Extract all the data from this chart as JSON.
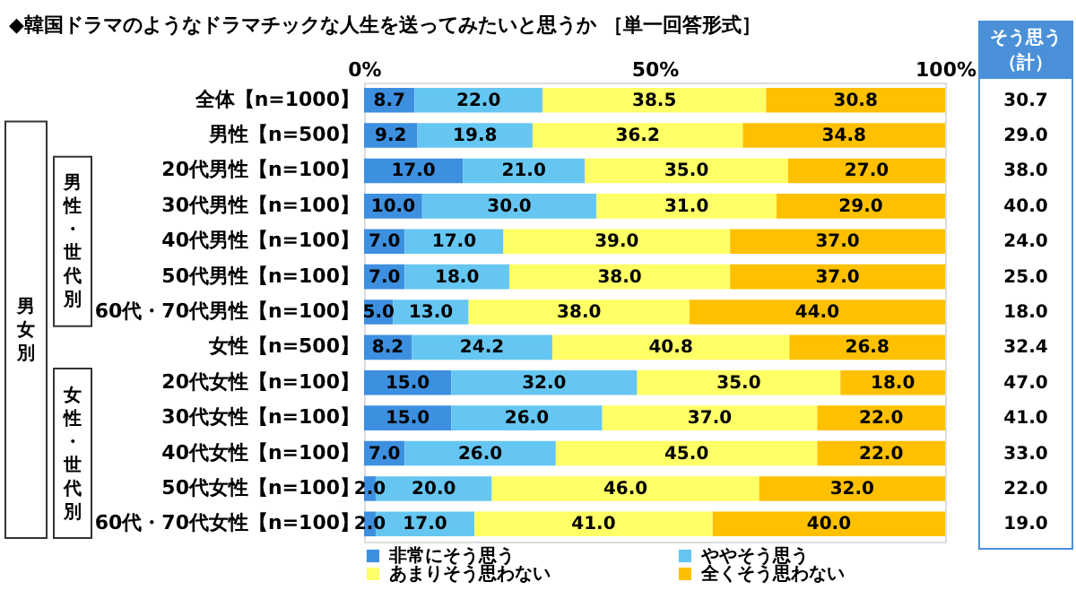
{
  "chart_data": {
    "type": "bar",
    "orientation": "horizontal",
    "stacked": true,
    "title": "◆韓国ドラマのようなドラマチックな人生を送ってみたいと思うか ［単一回答形式］",
    "categories": [
      "全体【n=1000】",
      "男性【n=500】",
      "20代男性【n=100】",
      "30代男性【n=100】",
      "40代男性【n=100】",
      "50代男性【n=100】",
      "60代・70代男性【n=100】",
      "女性【n=500】",
      "20代女性【n=100】",
      "30代女性【n=100】",
      "40代女性【n=100】",
      "50代女性【n=100】",
      "60代・70代女性【n=100】"
    ],
    "series": [
      {
        "name": "非常にそう思う",
        "color": "#3d8fe0",
        "values": [
          8.7,
          9.2,
          17.0,
          10.0,
          7.0,
          7.0,
          5.0,
          8.2,
          15.0,
          15.0,
          7.0,
          2.0,
          2.0
        ],
        "value_labels": [
          "8.7",
          "9.2",
          "17.0",
          "10.0",
          "7.0",
          "7.0",
          "5.0",
          "8.2",
          "15.0",
          "15.0",
          "7.0",
          "2.0",
          "2.0"
        ]
      },
      {
        "name": "ややそう思う",
        "color": "#66c6f2",
        "values": [
          22.0,
          19.8,
          21.0,
          30.0,
          17.0,
          18.0,
          13.0,
          24.2,
          32.0,
          26.0,
          26.0,
          20.0,
          17.0
        ],
        "value_labels": [
          "22.0",
          "19.8",
          "21.0",
          "30.0",
          "17.0",
          "18.0",
          "13.0",
          "24.2",
          "32.0",
          "26.0",
          "26.0",
          "20.0",
          "17.0"
        ]
      },
      {
        "name": "あまりそう思わない",
        "color": "#ffff66",
        "values": [
          38.5,
          36.2,
          35.0,
          31.0,
          39.0,
          38.0,
          38.0,
          40.8,
          35.0,
          37.0,
          45.0,
          46.0,
          41.0
        ],
        "value_labels": [
          "38.5",
          "36.2",
          "35.0",
          "31.0",
          "39.0",
          "38.0",
          "38.0",
          "40.8",
          "35.0",
          "37.0",
          "45.0",
          "46.0",
          "41.0"
        ]
      },
      {
        "name": "全くそう思わない",
        "color": "#ffc000",
        "values": [
          30.8,
          34.8,
          27.0,
          29.0,
          37.0,
          37.0,
          44.0,
          26.8,
          18.0,
          22.0,
          22.0,
          32.0,
          40.0
        ],
        "value_labels": [
          "30.8",
          "34.8",
          "27.0",
          "29.0",
          "37.0",
          "37.0",
          "44.0",
          "26.8",
          "18.0",
          "22.0",
          "22.0",
          "32.0",
          "40.0"
        ]
      }
    ],
    "xlim": [
      0,
      100
    ],
    "xticks": [
      {
        "value": 0,
        "label": "0%"
      },
      {
        "value": 50,
        "label": "50%"
      },
      {
        "value": 100,
        "label": "100%"
      }
    ],
    "annotations": [
      "そう思う（計）",
      "男女別",
      "男性・世代別",
      "女性・世代別",
      "30.7",
      "29.0",
      "38.0",
      "40.0",
      "24.0",
      "25.0",
      "18.0",
      "32.4",
      "47.0",
      "41.0",
      "33.0",
      "22.0",
      "19.0"
    ],
    "legend": "bottom",
    "grid": false
  }
}
